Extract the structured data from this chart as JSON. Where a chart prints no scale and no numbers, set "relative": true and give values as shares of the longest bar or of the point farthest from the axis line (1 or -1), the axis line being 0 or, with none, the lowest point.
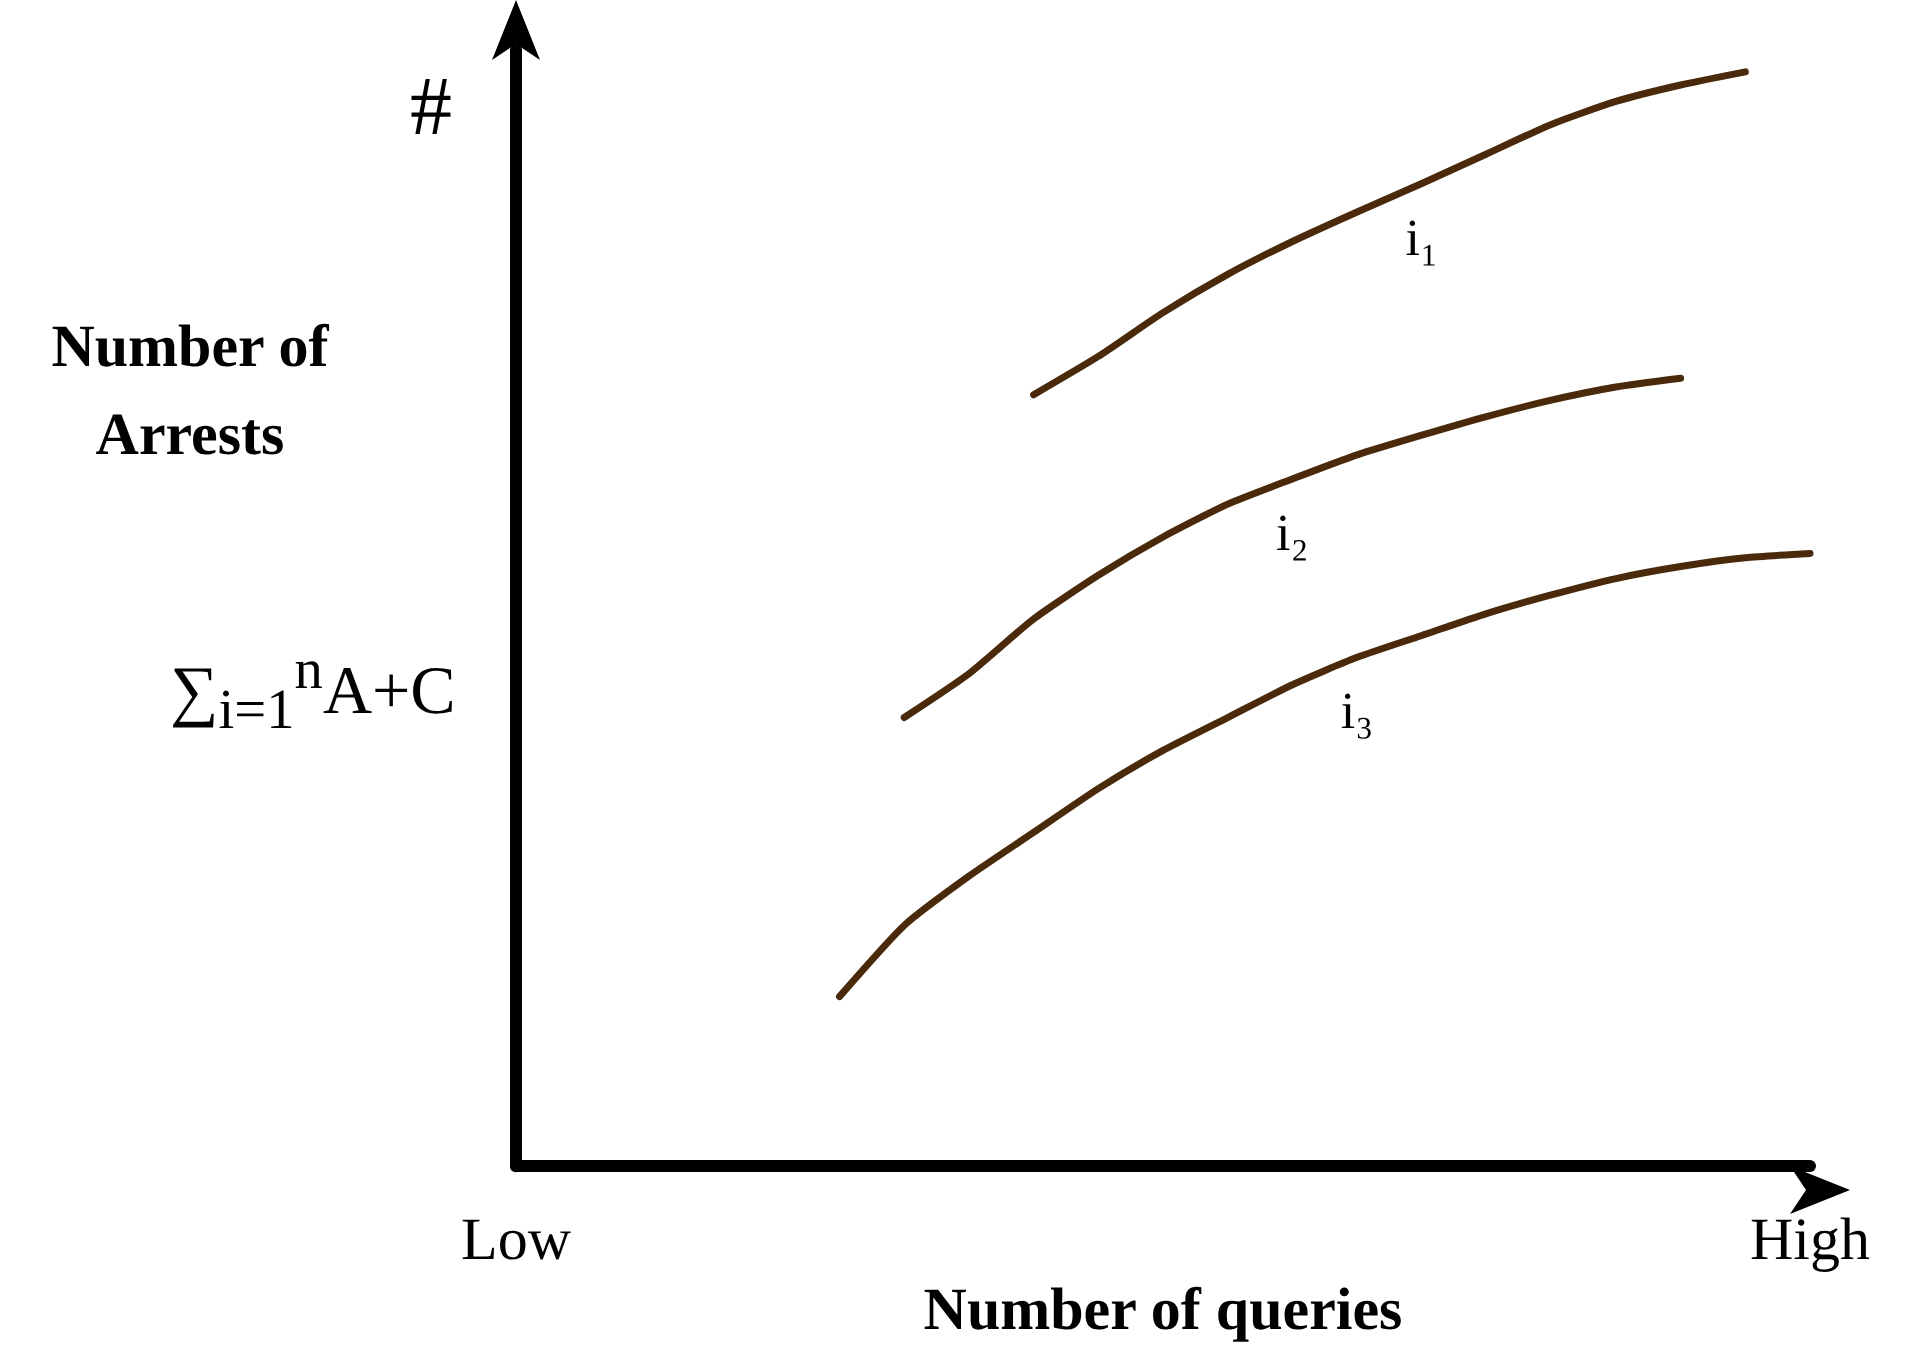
{
  "chart_data": {
    "type": "line",
    "relative": true,
    "xlabel": "Number of queries",
    "ylabel": "Number of Arrests",
    "annotations": [
      "#",
      "∑$_{i=1}$$^{n}$A+C"
    ],
    "categories": [
      "Low",
      null,
      null,
      null,
      null,
      null,
      null,
      null,
      null,
      null,
      null,
      null,
      null,
      null,
      null,
      null,
      null,
      null,
      null,
      null,
      "High"
    ],
    "tick_labels": "x",
    "grid": false,
    "legend": false,
    "marker": "none",
    "line_style": "solid",
    "series": [
      {
        "name": "i₁",
        "color": "#4a2a0a",
        "values": [
          null,
          null,
          null,
          null,
          null,
          null,
          null,
          null,
          0.705,
          0.74,
          0.78,
          0.815,
          0.845,
          0.872,
          0.898,
          0.925,
          0.952,
          0.973,
          0.988,
          1,
          null
        ]
      },
      {
        "name": "i₂",
        "color": "#4a2a0a",
        "values": [
          null,
          null,
          null,
          null,
          null,
          null,
          0.41,
          0.45,
          0.5,
          0.54,
          0.575,
          0.605,
          0.628,
          0.65,
          0.668,
          0.685,
          0.7,
          0.712,
          0.72,
          null,
          null
        ]
      },
      {
        "name": "i₃",
        "color": "#4a2a0a",
        "values": [
          null,
          null,
          null,
          null,
          null,
          0.155,
          0.22,
          0.265,
          0.305,
          0.345,
          0.38,
          0.41,
          0.44,
          0.465,
          0.485,
          0.505,
          0.522,
          0.537,
          0.548,
          0.556,
          0.56
        ]
      }
    ]
  }
}
